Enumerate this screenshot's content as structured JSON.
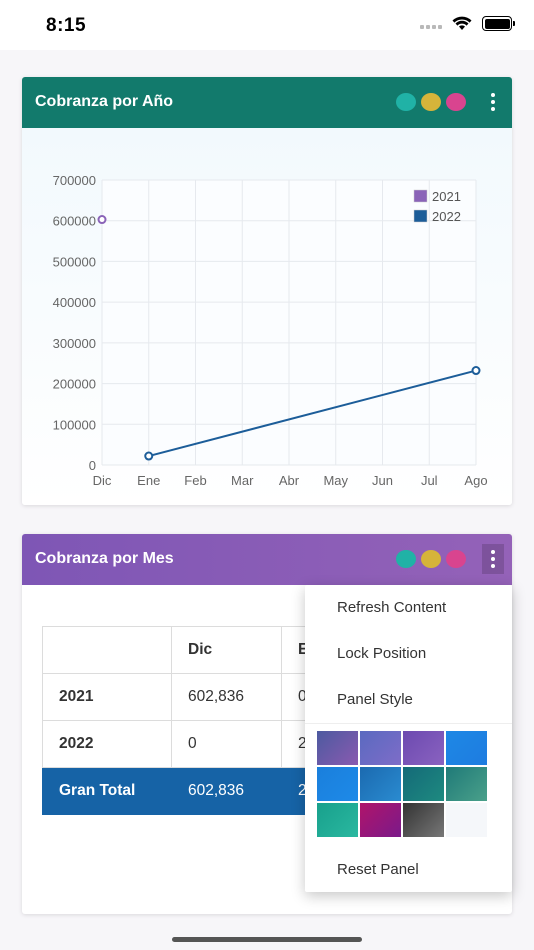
{
  "status_bar": {
    "time": "8:15"
  },
  "panel_year": {
    "title": "Cobranza por Año",
    "header_dots": [
      "#20b2a6",
      "#d6b43a",
      "#d9448f"
    ]
  },
  "chart_data": {
    "type": "line",
    "categories": [
      "Dic",
      "Ene",
      "Feb",
      "Mar",
      "Abr",
      "May",
      "Jun",
      "Jul",
      "Ago"
    ],
    "series": [
      {
        "name": "2021",
        "color": "#8a63b8",
        "points": [
          [
            "Dic",
            602836
          ]
        ]
      },
      {
        "name": "2022",
        "color": "#1c5d99",
        "points": [
          [
            "Ene",
            22000
          ],
          [
            "Ago",
            232000
          ]
        ]
      }
    ],
    "y_ticks": [
      "700000",
      "600000",
      "500000",
      "400000",
      "300000",
      "200000",
      "100000",
      "0"
    ],
    "ylim": [
      0,
      700000
    ],
    "legend_position": "top-right",
    "grid": true
  },
  "panel_month": {
    "title": "Cobranza por Mes",
    "header_dots": [
      "#20b2a6",
      "#d6b43a",
      "#d9448f"
    ],
    "table": {
      "headers": [
        "",
        "Dic",
        "E"
      ],
      "rows": [
        {
          "label": "2021",
          "values": [
            "602,836",
            "0"
          ]
        },
        {
          "label": "2022",
          "values": [
            "0",
            "2"
          ]
        }
      ],
      "total": {
        "label": "Gran Total",
        "values": [
          "602,836",
          "2"
        ]
      }
    }
  },
  "context_menu": {
    "items": [
      "Refresh Content",
      "Lock Position",
      "Panel Style"
    ],
    "swatches": [
      "linear-gradient(135deg,#4c5aa0,#8a5ab0)",
      "linear-gradient(135deg,#5a6ac0,#7e6cc8)",
      "linear-gradient(135deg,#6c4ab0,#8a62c0)",
      "linear-gradient(135deg,#1e88e5,#1e7ce0)",
      "linear-gradient(135deg,#1a7fdc,#1e8ae8)",
      "linear-gradient(135deg,#1b6ab0,#2a8bd0)",
      "linear-gradient(135deg,#146a78,#1e8a80)",
      "linear-gradient(135deg,#1f7a78,#4aa08a)",
      "linear-gradient(135deg,#18a08c,#2ab8a0)",
      "linear-gradient(135deg,#b0146a,#7a1a8a)",
      "linear-gradient(135deg,#333333,#777777)",
      "#f5f7fa"
    ],
    "reset_label": "Reset Panel"
  }
}
